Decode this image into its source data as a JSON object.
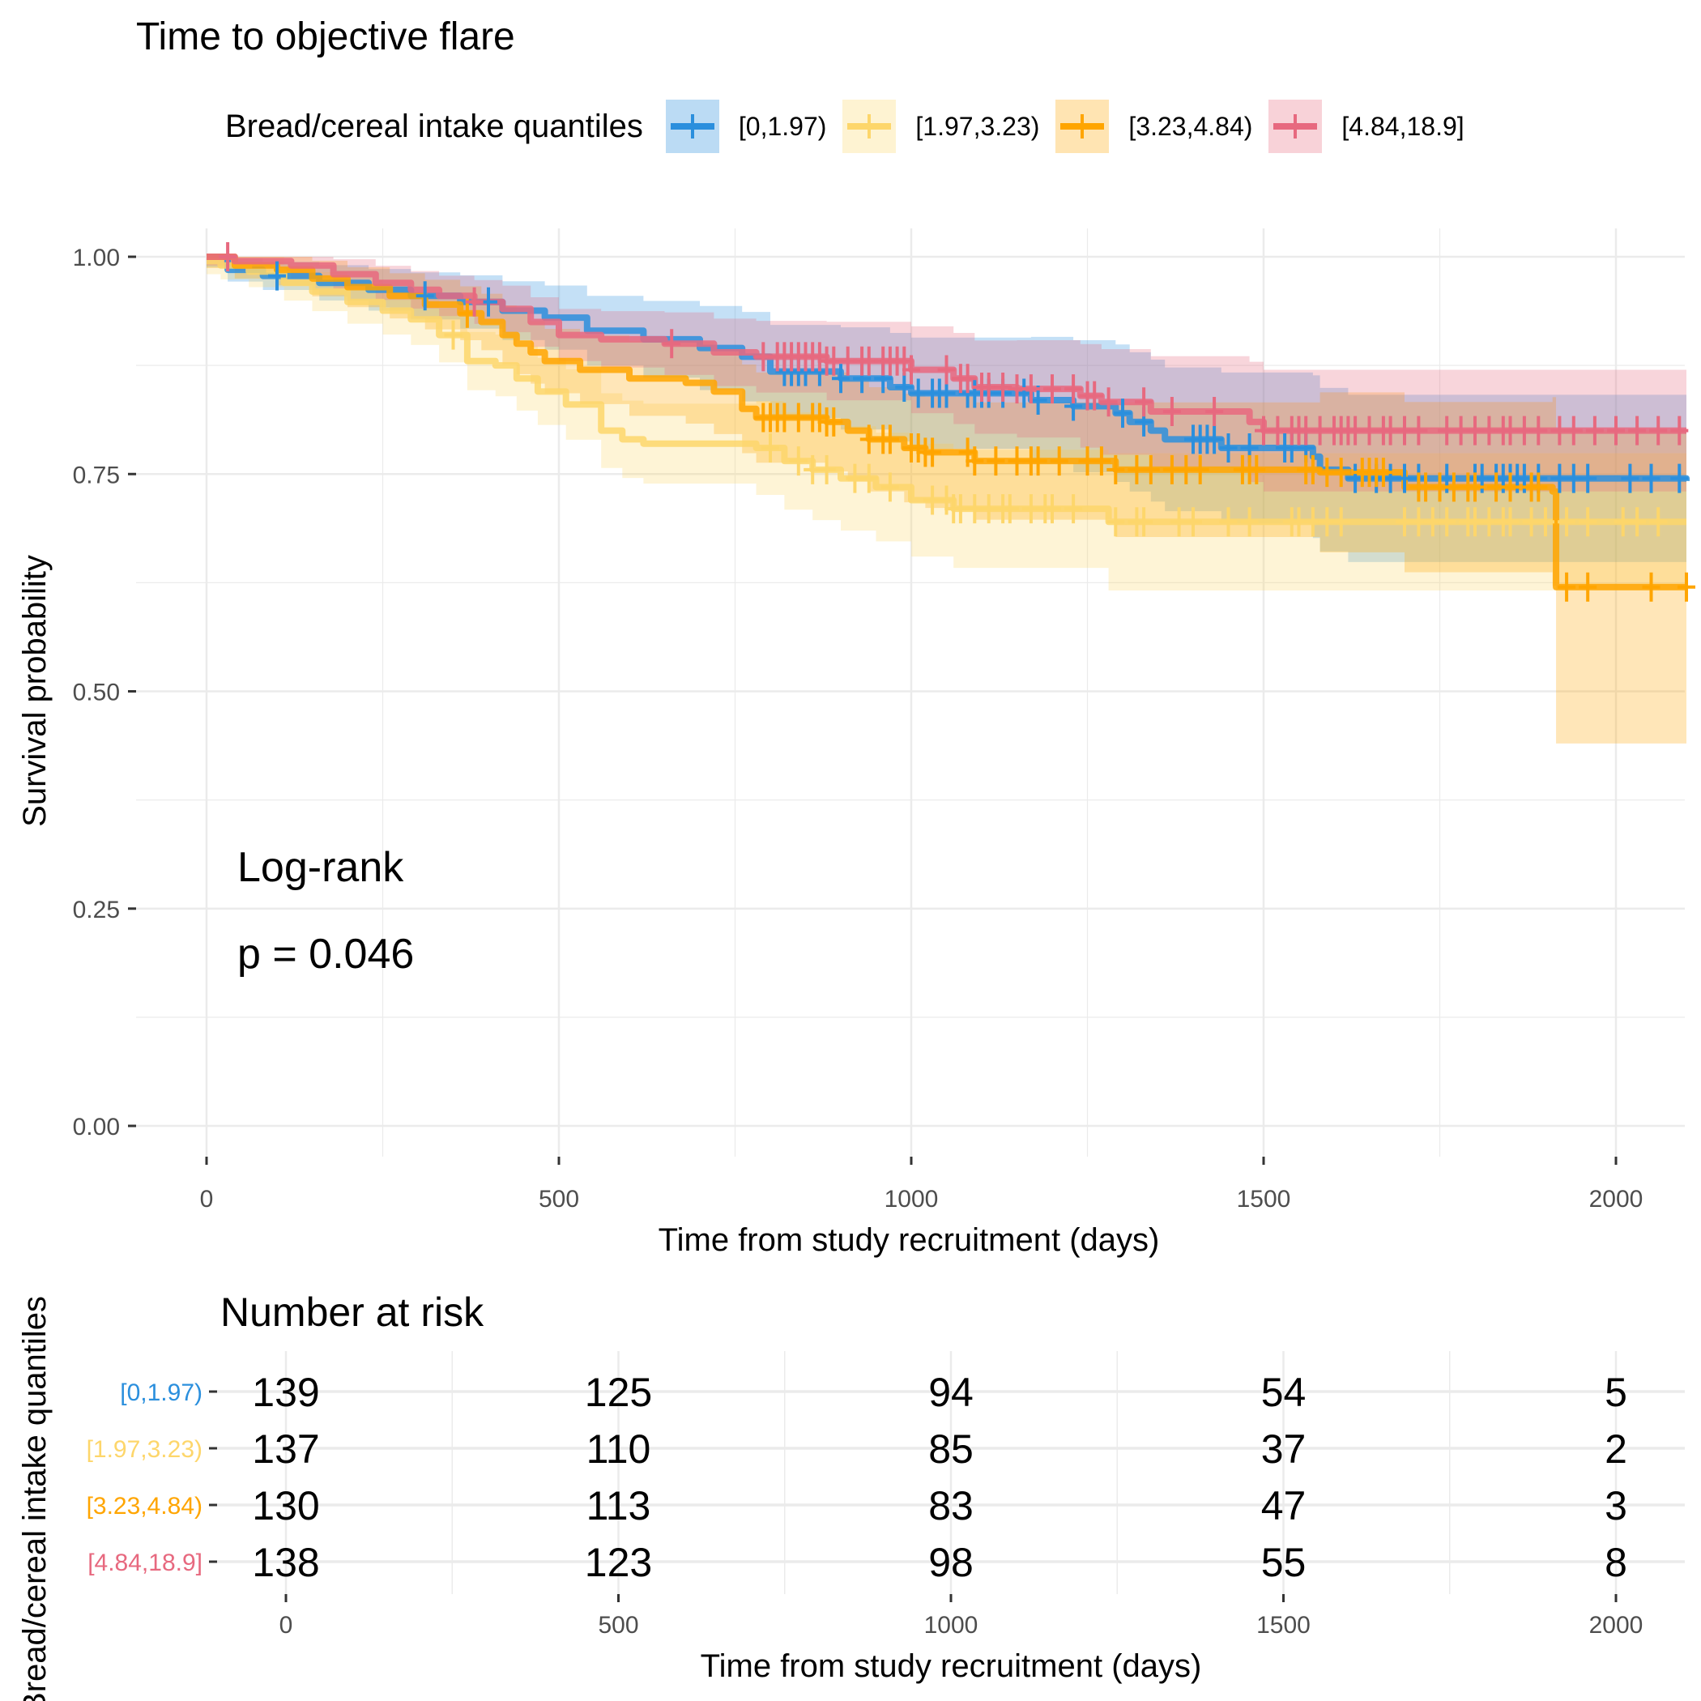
{
  "chart_data": [
    {
      "type": "line",
      "subtype": "kaplan-meier",
      "title": "Time to objective flare",
      "xlabel": "Time from study recruitment (days)",
      "ylabel": "Survival probability",
      "xlim": [
        -100,
        2100
      ],
      "ylim": [
        -0.04,
        1.04
      ],
      "x_ticks": [
        0,
        500,
        1000,
        1500,
        2000
      ],
      "y_ticks": [
        0.0,
        0.25,
        0.5,
        0.75,
        1.0
      ],
      "y_tick_labels": [
        "0.00",
        "0.25",
        "0.50",
        "0.75",
        "1.00"
      ],
      "grid": true,
      "legend": {
        "title": "Bread/cereal intake quantiles",
        "placement": "top",
        "entries": [
          "[0,1.97)",
          "[1.97,3.23)",
          "[3.23,4.84)",
          "[4.84,18.9]"
        ]
      },
      "annotation": {
        "line1": "Log-rank",
        "line2": "p = 0.046",
        "p_value": 0.046
      },
      "series": [
        {
          "name": "[0,1.97)",
          "color": "#2B8FDD",
          "steps": [
            [
              0,
              1.0
            ],
            [
              30,
              0.985
            ],
            [
              80,
              0.978
            ],
            [
              160,
              0.97
            ],
            [
              230,
              0.962
            ],
            [
              290,
              0.955
            ],
            [
              360,
              0.948
            ],
            [
              420,
              0.938
            ],
            [
              480,
              0.93
            ],
            [
              540,
              0.915
            ],
            [
              620,
              0.905
            ],
            [
              700,
              0.895
            ],
            [
              760,
              0.885
            ],
            [
              800,
              0.868
            ],
            [
              900,
              0.86
            ],
            [
              970,
              0.85
            ],
            [
              1000,
              0.843
            ],
            [
              1170,
              0.835
            ],
            [
              1230,
              0.828
            ],
            [
              1290,
              0.82
            ],
            [
              1310,
              0.81
            ],
            [
              1340,
              0.8
            ],
            [
              1360,
              0.79
            ],
            [
              1440,
              0.78
            ],
            [
              1570,
              0.77
            ],
            [
              1580,
              0.755
            ],
            [
              1620,
              0.745
            ],
            [
              2100,
              0.742
            ]
          ],
          "censor_times": [
            100,
            310,
            400,
            820,
            830,
            840,
            850,
            870,
            900,
            930,
            960,
            990,
            1010,
            1030,
            1040,
            1050,
            1080,
            1090,
            1100,
            1110,
            1130,
            1160,
            1180,
            1230,
            1300,
            1330,
            1400,
            1410,
            1420,
            1430,
            1450,
            1480,
            1530,
            1540,
            1560,
            1630,
            1660,
            1680,
            1700,
            1720,
            1760,
            1800,
            1810,
            1830,
            1840,
            1850,
            1860,
            1870,
            1890,
            1920,
            1940,
            1960,
            2020,
            2050,
            2090
          ]
        },
        {
          "name": "[1.97,3.23)",
          "color": "#FDD66B",
          "steps": [
            [
              0,
              0.995
            ],
            [
              20,
              0.99
            ],
            [
              60,
              0.983
            ],
            [
              110,
              0.97
            ],
            [
              150,
              0.96
            ],
            [
              200,
              0.948
            ],
            [
              250,
              0.938
            ],
            [
              290,
              0.928
            ],
            [
              330,
              0.91
            ],
            [
              370,
              0.88
            ],
            [
              410,
              0.875
            ],
            [
              440,
              0.86
            ],
            [
              470,
              0.845
            ],
            [
              510,
              0.83
            ],
            [
              560,
              0.8
            ],
            [
              590,
              0.79
            ],
            [
              620,
              0.785
            ],
            [
              780,
              0.78
            ],
            [
              820,
              0.765
            ],
            [
              860,
              0.755
            ],
            [
              900,
              0.745
            ],
            [
              950,
              0.735
            ],
            [
              1000,
              0.72
            ],
            [
              1060,
              0.71
            ],
            [
              1280,
              0.695
            ],
            [
              2100,
              0.695
            ]
          ],
          "censor_times": [
            350,
            800,
            840,
            860,
            880,
            920,
            940,
            970,
            1030,
            1050,
            1060,
            1070,
            1090,
            1110,
            1130,
            1140,
            1170,
            1190,
            1200,
            1230,
            1290,
            1320,
            1330,
            1380,
            1400,
            1450,
            1480,
            1540,
            1550,
            1570,
            1590,
            1610,
            1700,
            1720,
            1740,
            1760,
            1790,
            1800,
            1820,
            1840,
            1850,
            1880,
            1900,
            1930,
            1960,
            2010,
            2030,
            2060
          ]
        },
        {
          "name": "[3.23,4.84)",
          "color": "#FFA500",
          "steps": [
            [
              0,
              1.0
            ],
            [
              40,
              0.99
            ],
            [
              100,
              0.985
            ],
            [
              150,
              0.975
            ],
            [
              200,
              0.965
            ],
            [
              260,
              0.955
            ],
            [
              310,
              0.945
            ],
            [
              360,
              0.935
            ],
            [
              390,
              0.925
            ],
            [
              420,
              0.91
            ],
            [
              440,
              0.9
            ],
            [
              460,
              0.89
            ],
            [
              480,
              0.88
            ],
            [
              530,
              0.87
            ],
            [
              600,
              0.86
            ],
            [
              680,
              0.855
            ],
            [
              720,
              0.845
            ],
            [
              760,
              0.825
            ],
            [
              780,
              0.815
            ],
            [
              880,
              0.81
            ],
            [
              910,
              0.8
            ],
            [
              940,
              0.79
            ],
            [
              990,
              0.78
            ],
            [
              1020,
              0.775
            ],
            [
              1090,
              0.765
            ],
            [
              1290,
              0.755
            ],
            [
              1580,
              0.752
            ],
            [
              1700,
              0.735
            ],
            [
              1910,
              0.73
            ],
            [
              1915,
              0.62
            ],
            [
              2100,
              0.62
            ]
          ],
          "censor_times": [
            370,
            790,
            800,
            810,
            820,
            840,
            860,
            870,
            880,
            890,
            940,
            960,
            970,
            1000,
            1010,
            1020,
            1030,
            1080,
            1090,
            1120,
            1150,
            1170,
            1180,
            1210,
            1250,
            1270,
            1290,
            1320,
            1340,
            1370,
            1390,
            1410,
            1470,
            1480,
            1490,
            1560,
            1570,
            1590,
            1610,
            1640,
            1650,
            1660,
            1670,
            1720,
            1730,
            1750,
            1770,
            1790,
            1800,
            1830,
            1850,
            1880,
            1890,
            1930,
            1960,
            2050,
            2100
          ]
        },
        {
          "name": "[4.84,18.9]",
          "color": "#E7697F",
          "steps": [
            [
              0,
              1.0
            ],
            [
              40,
              0.995
            ],
            [
              120,
              0.99
            ],
            [
              180,
              0.98
            ],
            [
              240,
              0.97
            ],
            [
              290,
              0.962
            ],
            [
              330,
              0.955
            ],
            [
              380,
              0.948
            ],
            [
              420,
              0.94
            ],
            [
              460,
              0.925
            ],
            [
              500,
              0.91
            ],
            [
              560,
              0.905
            ],
            [
              650,
              0.9
            ],
            [
              720,
              0.89
            ],
            [
              780,
              0.885
            ],
            [
              880,
              0.88
            ],
            [
              1000,
              0.87
            ],
            [
              1060,
              0.86
            ],
            [
              1090,
              0.85
            ],
            [
              1150,
              0.848
            ],
            [
              1240,
              0.84
            ],
            [
              1270,
              0.833
            ],
            [
              1340,
              0.822
            ],
            [
              1480,
              0.81
            ],
            [
              1500,
              0.8
            ],
            [
              2100,
              0.8
            ]
          ],
          "censor_times": [
            30,
            380,
            660,
            790,
            810,
            820,
            830,
            840,
            850,
            860,
            870,
            880,
            890,
            910,
            930,
            940,
            960,
            970,
            980,
            990,
            1000,
            1050,
            1070,
            1080,
            1100,
            1110,
            1130,
            1150,
            1170,
            1200,
            1230,
            1250,
            1260,
            1280,
            1330,
            1370,
            1430,
            1500,
            1520,
            1540,
            1550,
            1560,
            1580,
            1600,
            1610,
            1620,
            1630,
            1650,
            1670,
            1680,
            1700,
            1720,
            1760,
            1780,
            1800,
            1820,
            1840,
            1850,
            1870,
            1890,
            1920,
            1940,
            1970,
            2000,
            2030,
            2060,
            2090
          ]
        }
      ]
    },
    {
      "type": "table",
      "title": "Number at risk",
      "xlabel": "Time from study recruitment (days)",
      "ylabel": "Bread/cereal intake quantiles",
      "x_ticks": [
        0,
        500,
        1000,
        1500,
        2000
      ],
      "rows": [
        {
          "group": "[0,1.97)",
          "color": "#2B8FDD",
          "values": [
            139,
            125,
            94,
            54,
            5
          ]
        },
        {
          "group": "[1.97,3.23)",
          "color": "#FDD66B",
          "values": [
            137,
            110,
            85,
            37,
            2
          ]
        },
        {
          "group": "[3.23,4.84)",
          "color": "#FFA500",
          "values": [
            130,
            113,
            83,
            47,
            3
          ]
        },
        {
          "group": "[4.84,18.9]",
          "color": "#E7697F",
          "values": [
            138,
            123,
            98,
            55,
            8
          ]
        }
      ]
    }
  ]
}
